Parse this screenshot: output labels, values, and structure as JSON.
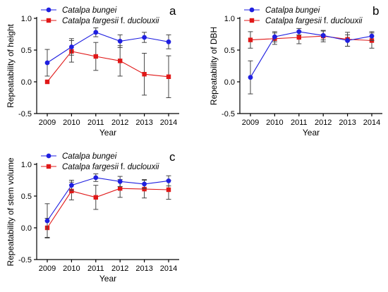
{
  "colors": {
    "series_blue": "#1f1fe0",
    "series_red": "#e01818",
    "axis": "#000000",
    "error_bar": "#444444"
  },
  "legend_names": {
    "bungei": "Catalpa bungei",
    "fargesii_part1": "Catalpa fargesii",
    "fargesii_part2": " f. ",
    "fargesii_part3": "duclouxii"
  },
  "chart_data": [
    {
      "type": "line",
      "panel": "a",
      "xlabel": "Year",
      "ylabel": "Repeatability of height",
      "x": [
        "2009",
        "2010",
        "2011",
        "2012",
        "2013",
        "2014"
      ],
      "ylim": [
        -0.5,
        1.0
      ],
      "yticks": [
        "-0.5",
        "0.0",
        "0.5",
        "1.0"
      ],
      "grid": false,
      "legend": "top-left",
      "series": [
        {
          "name": "Catalpa bungei",
          "color": "#1f1fe0",
          "marker": "circle",
          "values": [
            0.3,
            0.55,
            0.78,
            0.64,
            0.7,
            0.63
          ],
          "errors": [
            0.21,
            0.13,
            0.07,
            0.1,
            0.08,
            0.11
          ]
        },
        {
          "name": "Catalpa fargesii f. duclouxii",
          "color": "#e01818",
          "marker": "square",
          "values": [
            0.0,
            0.48,
            0.4,
            0.33,
            0.12,
            0.08
          ],
          "errors": [
            0.0,
            0.17,
            0.22,
            0.24,
            0.33,
            0.33
          ]
        }
      ]
    },
    {
      "type": "line",
      "panel": "b",
      "xlabel": "Year",
      "ylabel": "Repeatability of DBH",
      "x": [
        "2009",
        "2010",
        "2011",
        "2012",
        "2013",
        "2014"
      ],
      "ylim": [
        -0.5,
        1.0
      ],
      "yticks": [
        "-0.5",
        "0.0",
        "0.5",
        "1.0"
      ],
      "grid": false,
      "legend": "top-left",
      "series": [
        {
          "name": "Catalpa bungei",
          "color": "#1f1fe0",
          "marker": "circle",
          "values": [
            0.07,
            0.71,
            0.79,
            0.73,
            0.65,
            0.72
          ],
          "errors": [
            0.26,
            0.08,
            0.05,
            0.07,
            0.09,
            0.07
          ]
        },
        {
          "name": "Catalpa fargesii f. duclouxii",
          "color": "#e01818",
          "marker": "square",
          "values": [
            0.66,
            0.68,
            0.7,
            0.72,
            0.67,
            0.65
          ],
          "errors": [
            0.13,
            0.09,
            0.1,
            0.09,
            0.11,
            0.12
          ]
        }
      ]
    },
    {
      "type": "line",
      "panel": "c",
      "xlabel": "Year",
      "ylabel": "Repeatability of stem volume",
      "x": [
        "2009",
        "2010",
        "2011",
        "2012",
        "2013",
        "2014"
      ],
      "ylim": [
        -0.5,
        1.0
      ],
      "yticks": [
        "-0.5",
        "0.0",
        "0.5",
        "1.0"
      ],
      "grid": false,
      "legend": "top-left",
      "series": [
        {
          "name": "Catalpa bungei",
          "color": "#1f1fe0",
          "marker": "circle",
          "values": [
            0.11,
            0.67,
            0.79,
            0.73,
            0.69,
            0.74
          ],
          "errors": [
            0.27,
            0.08,
            0.06,
            0.08,
            0.07,
            0.08
          ]
        },
        {
          "name": "Catalpa fargesii f. duclouxii",
          "color": "#e01818",
          "marker": "square",
          "values": [
            0.0,
            0.58,
            0.48,
            0.62,
            0.61,
            0.6
          ],
          "errors": [
            0.15,
            0.14,
            0.19,
            0.14,
            0.14,
            0.15
          ]
        }
      ]
    }
  ]
}
